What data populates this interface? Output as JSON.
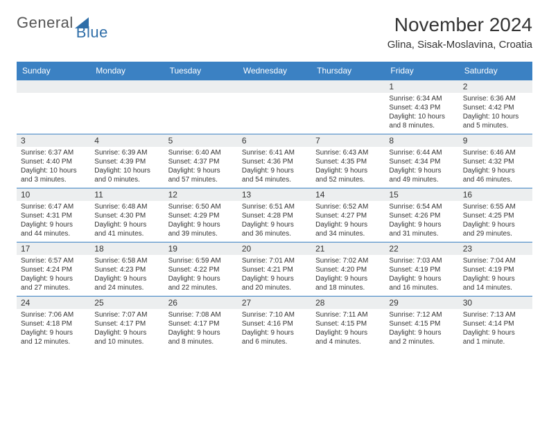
{
  "brand": {
    "word1": "General",
    "word2": "Blue"
  },
  "header": {
    "title": "November 2024",
    "location": "Glina, Sisak-Moslavina, Croatia"
  },
  "colors": {
    "header_bg": "#3b81c3",
    "header_text": "#ffffff",
    "daynum_bg": "#eceeef",
    "border": "#3b81c3",
    "body_text": "#333333",
    "brand_blue": "#2f6ea8",
    "page_bg": "#ffffff"
  },
  "weekdays": [
    "Sunday",
    "Monday",
    "Tuesday",
    "Wednesday",
    "Thursday",
    "Friday",
    "Saturday"
  ],
  "weeks": [
    [
      {
        "n": "",
        "empty": true
      },
      {
        "n": "",
        "empty": true
      },
      {
        "n": "",
        "empty": true
      },
      {
        "n": "",
        "empty": true
      },
      {
        "n": "",
        "empty": true
      },
      {
        "n": "1",
        "sunrise": "Sunrise: 6:34 AM",
        "sunset": "Sunset: 4:43 PM",
        "daylight1": "Daylight: 10 hours",
        "daylight2": "and 8 minutes."
      },
      {
        "n": "2",
        "sunrise": "Sunrise: 6:36 AM",
        "sunset": "Sunset: 4:42 PM",
        "daylight1": "Daylight: 10 hours",
        "daylight2": "and 5 minutes."
      }
    ],
    [
      {
        "n": "3",
        "sunrise": "Sunrise: 6:37 AM",
        "sunset": "Sunset: 4:40 PM",
        "daylight1": "Daylight: 10 hours",
        "daylight2": "and 3 minutes."
      },
      {
        "n": "4",
        "sunrise": "Sunrise: 6:39 AM",
        "sunset": "Sunset: 4:39 PM",
        "daylight1": "Daylight: 10 hours",
        "daylight2": "and 0 minutes."
      },
      {
        "n": "5",
        "sunrise": "Sunrise: 6:40 AM",
        "sunset": "Sunset: 4:37 PM",
        "daylight1": "Daylight: 9 hours",
        "daylight2": "and 57 minutes."
      },
      {
        "n": "6",
        "sunrise": "Sunrise: 6:41 AM",
        "sunset": "Sunset: 4:36 PM",
        "daylight1": "Daylight: 9 hours",
        "daylight2": "and 54 minutes."
      },
      {
        "n": "7",
        "sunrise": "Sunrise: 6:43 AM",
        "sunset": "Sunset: 4:35 PM",
        "daylight1": "Daylight: 9 hours",
        "daylight2": "and 52 minutes."
      },
      {
        "n": "8",
        "sunrise": "Sunrise: 6:44 AM",
        "sunset": "Sunset: 4:34 PM",
        "daylight1": "Daylight: 9 hours",
        "daylight2": "and 49 minutes."
      },
      {
        "n": "9",
        "sunrise": "Sunrise: 6:46 AM",
        "sunset": "Sunset: 4:32 PM",
        "daylight1": "Daylight: 9 hours",
        "daylight2": "and 46 minutes."
      }
    ],
    [
      {
        "n": "10",
        "sunrise": "Sunrise: 6:47 AM",
        "sunset": "Sunset: 4:31 PM",
        "daylight1": "Daylight: 9 hours",
        "daylight2": "and 44 minutes."
      },
      {
        "n": "11",
        "sunrise": "Sunrise: 6:48 AM",
        "sunset": "Sunset: 4:30 PM",
        "daylight1": "Daylight: 9 hours",
        "daylight2": "and 41 minutes."
      },
      {
        "n": "12",
        "sunrise": "Sunrise: 6:50 AM",
        "sunset": "Sunset: 4:29 PM",
        "daylight1": "Daylight: 9 hours",
        "daylight2": "and 39 minutes."
      },
      {
        "n": "13",
        "sunrise": "Sunrise: 6:51 AM",
        "sunset": "Sunset: 4:28 PM",
        "daylight1": "Daylight: 9 hours",
        "daylight2": "and 36 minutes."
      },
      {
        "n": "14",
        "sunrise": "Sunrise: 6:52 AM",
        "sunset": "Sunset: 4:27 PM",
        "daylight1": "Daylight: 9 hours",
        "daylight2": "and 34 minutes."
      },
      {
        "n": "15",
        "sunrise": "Sunrise: 6:54 AM",
        "sunset": "Sunset: 4:26 PM",
        "daylight1": "Daylight: 9 hours",
        "daylight2": "and 31 minutes."
      },
      {
        "n": "16",
        "sunrise": "Sunrise: 6:55 AM",
        "sunset": "Sunset: 4:25 PM",
        "daylight1": "Daylight: 9 hours",
        "daylight2": "and 29 minutes."
      }
    ],
    [
      {
        "n": "17",
        "sunrise": "Sunrise: 6:57 AM",
        "sunset": "Sunset: 4:24 PM",
        "daylight1": "Daylight: 9 hours",
        "daylight2": "and 27 minutes."
      },
      {
        "n": "18",
        "sunrise": "Sunrise: 6:58 AM",
        "sunset": "Sunset: 4:23 PM",
        "daylight1": "Daylight: 9 hours",
        "daylight2": "and 24 minutes."
      },
      {
        "n": "19",
        "sunrise": "Sunrise: 6:59 AM",
        "sunset": "Sunset: 4:22 PM",
        "daylight1": "Daylight: 9 hours",
        "daylight2": "and 22 minutes."
      },
      {
        "n": "20",
        "sunrise": "Sunrise: 7:01 AM",
        "sunset": "Sunset: 4:21 PM",
        "daylight1": "Daylight: 9 hours",
        "daylight2": "and 20 minutes."
      },
      {
        "n": "21",
        "sunrise": "Sunrise: 7:02 AM",
        "sunset": "Sunset: 4:20 PM",
        "daylight1": "Daylight: 9 hours",
        "daylight2": "and 18 minutes."
      },
      {
        "n": "22",
        "sunrise": "Sunrise: 7:03 AM",
        "sunset": "Sunset: 4:19 PM",
        "daylight1": "Daylight: 9 hours",
        "daylight2": "and 16 minutes."
      },
      {
        "n": "23",
        "sunrise": "Sunrise: 7:04 AM",
        "sunset": "Sunset: 4:19 PM",
        "daylight1": "Daylight: 9 hours",
        "daylight2": "and 14 minutes."
      }
    ],
    [
      {
        "n": "24",
        "sunrise": "Sunrise: 7:06 AM",
        "sunset": "Sunset: 4:18 PM",
        "daylight1": "Daylight: 9 hours",
        "daylight2": "and 12 minutes."
      },
      {
        "n": "25",
        "sunrise": "Sunrise: 7:07 AM",
        "sunset": "Sunset: 4:17 PM",
        "daylight1": "Daylight: 9 hours",
        "daylight2": "and 10 minutes."
      },
      {
        "n": "26",
        "sunrise": "Sunrise: 7:08 AM",
        "sunset": "Sunset: 4:17 PM",
        "daylight1": "Daylight: 9 hours",
        "daylight2": "and 8 minutes."
      },
      {
        "n": "27",
        "sunrise": "Sunrise: 7:10 AM",
        "sunset": "Sunset: 4:16 PM",
        "daylight1": "Daylight: 9 hours",
        "daylight2": "and 6 minutes."
      },
      {
        "n": "28",
        "sunrise": "Sunrise: 7:11 AM",
        "sunset": "Sunset: 4:15 PM",
        "daylight1": "Daylight: 9 hours",
        "daylight2": "and 4 minutes."
      },
      {
        "n": "29",
        "sunrise": "Sunrise: 7:12 AM",
        "sunset": "Sunset: 4:15 PM",
        "daylight1": "Daylight: 9 hours",
        "daylight2": "and 2 minutes."
      },
      {
        "n": "30",
        "sunrise": "Sunrise: 7:13 AM",
        "sunset": "Sunset: 4:14 PM",
        "daylight1": "Daylight: 9 hours",
        "daylight2": "and 1 minute."
      }
    ]
  ]
}
